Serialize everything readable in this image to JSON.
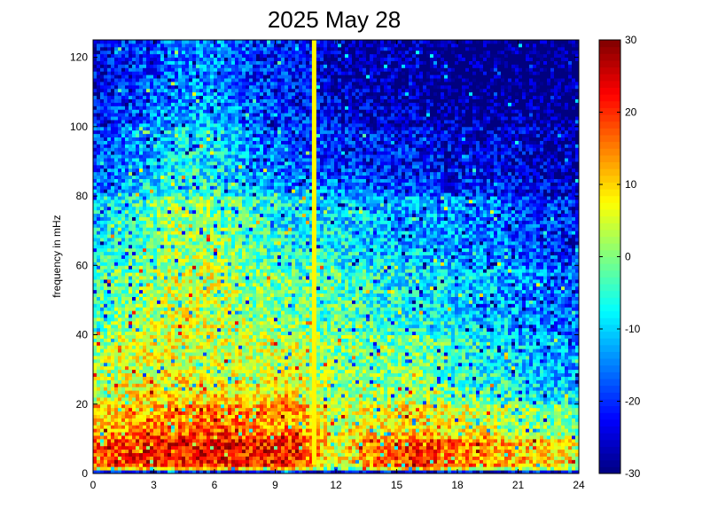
{
  "chart_data": {
    "type": "heatmap",
    "title": "2025 May 28",
    "xlabel": "",
    "ylabel": "frequency in mHz",
    "xlim": [
      0,
      24
    ],
    "ylim": [
      0,
      125
    ],
    "x_ticks": [
      "0",
      "3",
      "6",
      "9",
      "12",
      "15",
      "18",
      "21",
      "24"
    ],
    "y_ticks": [
      "0",
      "20",
      "40",
      "60",
      "80",
      "100",
      "120"
    ],
    "colorbar": {
      "colormap": "jet",
      "clim": [
        -30,
        30
      ],
      "ticks": [
        "-30",
        "-20",
        "-10",
        "0",
        "10",
        "20",
        "30"
      ]
    },
    "bands": [
      {
        "f_max": 1,
        "values": [
          -22,
          -22,
          -22,
          -22,
          -22,
          -22,
          -22,
          -22,
          -22,
          -22,
          -22,
          -22,
          -22
        ]
      },
      {
        "f_max": 3,
        "values": [
          16,
          20,
          20,
          18,
          22,
          18,
          3,
          16,
          20,
          17,
          14,
          12,
          6
        ]
      },
      {
        "f_max": 10,
        "values": [
          17,
          20,
          23,
          24,
          21,
          22,
          6,
          15,
          20,
          15,
          12,
          10,
          6
        ]
      },
      {
        "f_max": 20,
        "values": [
          10,
          13,
          15,
          17,
          14,
          14,
          4,
          7,
          10,
          5,
          3,
          0,
          -2
        ]
      },
      {
        "f_max": 40,
        "values": [
          2,
          5,
          7,
          5,
          4,
          5,
          0,
          -1,
          -1,
          -5,
          -8,
          -12,
          -14
        ]
      },
      {
        "f_max": 60,
        "values": [
          -4,
          0,
          4,
          5,
          0,
          -2,
          -3,
          -6,
          -8,
          -10,
          -12,
          -15,
          -18
        ]
      },
      {
        "f_max": 80,
        "values": [
          -10,
          -5,
          2,
          0,
          -4,
          -8,
          -8,
          -12,
          -12,
          -14,
          -16,
          -20,
          -22
        ]
      },
      {
        "f_max": 100,
        "values": [
          -20,
          -14,
          -8,
          -8,
          -15,
          -18,
          -20,
          -22,
          -22,
          -24,
          -24,
          -26,
          -28
        ]
      },
      {
        "f_max": 125,
        "values": [
          -24,
          -20,
          -16,
          -14,
          -20,
          -22,
          -26,
          -28,
          -28,
          -30,
          -30,
          -30,
          -30
        ]
      }
    ],
    "band_hours": [
      0,
      2,
      4,
      6,
      8,
      10,
      12,
      14,
      16,
      18,
      20,
      22,
      24
    ],
    "transient": {
      "hour": 10.9,
      "value": 8
    }
  }
}
